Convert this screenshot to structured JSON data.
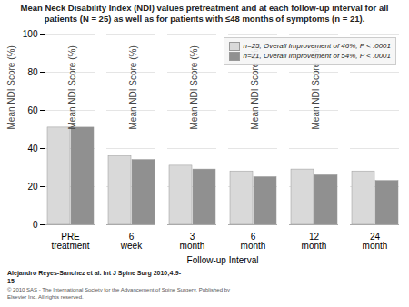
{
  "chart_data": {
    "type": "bar",
    "title": "Mean Neck Disability Index (NDI) values pretreatment and at each follow-up interval for all\npatients (N = 25) as well as for patients with ≤48 months of symptoms (n = 21).",
    "xlabel": "Follow-up Interval",
    "ylabel": "Mean NDI Score (%)",
    "categories": [
      "PRE\ntreatment",
      "6\nweek",
      "3\nmonth",
      "6\nmonth",
      "12\nmonth",
      "24\nmonth"
    ],
    "series": [
      {
        "name": "n=25, Overall Improvement of 46%, P < .0001",
        "color": "#d9d9d9",
        "values": [
          51,
          36,
          31,
          28,
          29,
          28
        ]
      },
      {
        "name": "n=21, Overall Improvement of 54%, P < .0001",
        "color": "#909090",
        "values": [
          51,
          34,
          29,
          25,
          26,
          23
        ]
      }
    ],
    "ylim": [
      0,
      100
    ],
    "yticks": [
      0,
      20,
      40,
      60,
      80,
      100
    ],
    "grid": true,
    "legend": "upper right",
    "annotations": [
      "Alejandro Reyes-Sanchez et al. Int J Spine Surg 2010;4:9-\n15",
      "© 2010 SAS - The International Society for the Advancement of Spine Surgery. Published by\nElsevier Inc. All rights reserved."
    ]
  }
}
